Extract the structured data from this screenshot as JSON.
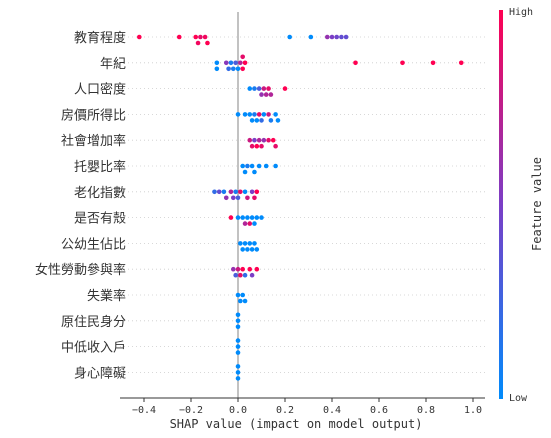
{
  "chart_data": {
    "type": "scatter",
    "subtype": "shap-beeswarm-summary",
    "xlabel": "SHAP value (impact on model output)",
    "xlim": [
      -0.5,
      1.0
    ],
    "xticks": [
      -0.4,
      -0.2,
      0.0,
      0.2,
      0.4,
      0.6,
      0.8,
      1.0
    ],
    "xtick_labels": [
      "−0.4",
      "−0.2",
      "0.0",
      "0.2",
      "0.4",
      "0.6",
      "0.8",
      "1.0"
    ],
    "grid": false,
    "colorbar": {
      "title": "Feature value",
      "high_label": "High",
      "low_label": "Low",
      "low_color": "#008bfb",
      "high_color": "#ff0052"
    },
    "features": [
      {
        "name": "教育程度",
        "points": [
          {
            "x": -0.42,
            "c": 1.0
          },
          {
            "x": -0.25,
            "c": 1.0
          },
          {
            "x": -0.18,
            "c": 1.0
          },
          {
            "x": -0.17,
            "c": 0.95
          },
          {
            "x": -0.16,
            "c": 0.9
          },
          {
            "x": -0.14,
            "c": 0.95
          },
          {
            "x": -0.13,
            "c": 1.0
          },
          {
            "x": 0.22,
            "c": 0.0
          },
          {
            "x": 0.31,
            "c": 0.0
          },
          {
            "x": 0.38,
            "c": 0.6
          },
          {
            "x": 0.4,
            "c": 0.5
          },
          {
            "x": 0.42,
            "c": 0.45
          },
          {
            "x": 0.44,
            "c": 0.4
          },
          {
            "x": 0.46,
            "c": 0.4
          }
        ]
      },
      {
        "name": "年紀",
        "points": [
          {
            "x": -0.09,
            "c": 0.0
          },
          {
            "x": -0.09,
            "c": 0.0
          },
          {
            "x": -0.05,
            "c": 0.55
          },
          {
            "x": -0.04,
            "c": 0.2
          },
          {
            "x": -0.03,
            "c": 0.1
          },
          {
            "x": -0.02,
            "c": 0.1
          },
          {
            "x": -0.01,
            "c": 0.3
          },
          {
            "x": 0.0,
            "c": 0.0
          },
          {
            "x": 0.01,
            "c": 0.7
          },
          {
            "x": 0.02,
            "c": 1.0
          },
          {
            "x": 0.02,
            "c": 0.9
          },
          {
            "x": 0.03,
            "c": 1.0
          },
          {
            "x": 0.5,
            "c": 1.0
          },
          {
            "x": 0.7,
            "c": 1.0
          },
          {
            "x": 0.83,
            "c": 1.0
          },
          {
            "x": 0.95,
            "c": 1.0
          }
        ]
      },
      {
        "name": "人口密度",
        "points": [
          {
            "x": 0.05,
            "c": 0.0
          },
          {
            "x": 0.07,
            "c": 0.1
          },
          {
            "x": 0.09,
            "c": 0.3
          },
          {
            "x": 0.1,
            "c": 0.6
          },
          {
            "x": 0.11,
            "c": 0.8
          },
          {
            "x": 0.12,
            "c": 0.7
          },
          {
            "x": 0.13,
            "c": 0.9
          },
          {
            "x": 0.14,
            "c": 0.7
          },
          {
            "x": 0.2,
            "c": 1.0
          }
        ]
      },
      {
        "name": "房價所得比",
        "points": [
          {
            "x": 0.0,
            "c": 0.0
          },
          {
            "x": 0.03,
            "c": 0.0
          },
          {
            "x": 0.05,
            "c": 0.0
          },
          {
            "x": 0.06,
            "c": 0.0
          },
          {
            "x": 0.07,
            "c": 0.1
          },
          {
            "x": 0.08,
            "c": 0.0
          },
          {
            "x": 0.09,
            "c": 0.9
          },
          {
            "x": 0.1,
            "c": 0.2
          },
          {
            "x": 0.11,
            "c": 0.0
          },
          {
            "x": 0.13,
            "c": 0.8
          },
          {
            "x": 0.14,
            "c": 0.1
          },
          {
            "x": 0.16,
            "c": 0.0
          },
          {
            "x": 0.17,
            "c": 0.0
          }
        ]
      },
      {
        "name": "社會增加率",
        "points": [
          {
            "x": 0.05,
            "c": 0.8
          },
          {
            "x": 0.06,
            "c": 0.9
          },
          {
            "x": 0.07,
            "c": 0.5
          },
          {
            "x": 0.08,
            "c": 1.0
          },
          {
            "x": 0.09,
            "c": 0.7
          },
          {
            "x": 0.1,
            "c": 0.9
          },
          {
            "x": 0.11,
            "c": 0.6
          },
          {
            "x": 0.13,
            "c": 0.9
          },
          {
            "x": 0.15,
            "c": 1.0
          },
          {
            "x": 0.16,
            "c": 0.9
          }
        ]
      },
      {
        "name": "托嬰比率",
        "points": [
          {
            "x": 0.02,
            "c": 0.0
          },
          {
            "x": 0.03,
            "c": 0.0
          },
          {
            "x": 0.04,
            "c": 0.1
          },
          {
            "x": 0.06,
            "c": 0.0
          },
          {
            "x": 0.07,
            "c": 0.0
          },
          {
            "x": 0.09,
            "c": 0.0
          },
          {
            "x": 0.12,
            "c": 0.0
          },
          {
            "x": 0.16,
            "c": 0.0
          }
        ]
      },
      {
        "name": "老化指數",
        "points": [
          {
            "x": -0.1,
            "c": 0.2
          },
          {
            "x": -0.08,
            "c": 0.4
          },
          {
            "x": -0.06,
            "c": 0.1
          },
          {
            "x": -0.05,
            "c": 0.6
          },
          {
            "x": -0.03,
            "c": 0.7
          },
          {
            "x": -0.02,
            "c": 0.5
          },
          {
            "x": -0.01,
            "c": 0.1
          },
          {
            "x": 0.0,
            "c": 0.3
          },
          {
            "x": 0.01,
            "c": 0.9
          },
          {
            "x": 0.03,
            "c": 0.0
          },
          {
            "x": 0.04,
            "c": 0.8
          },
          {
            "x": 0.06,
            "c": 0.5
          },
          {
            "x": 0.07,
            "c": 0.9
          },
          {
            "x": 0.08,
            "c": 1.0
          }
        ]
      },
      {
        "name": "是否有殼",
        "points": [
          {
            "x": -0.03,
            "c": 1.0
          },
          {
            "x": 0.0,
            "c": 0.0
          },
          {
            "x": 0.02,
            "c": 0.0
          },
          {
            "x": 0.03,
            "c": 0.7
          },
          {
            "x": 0.04,
            "c": 0.0
          },
          {
            "x": 0.05,
            "c": 0.9
          },
          {
            "x": 0.06,
            "c": 0.0
          },
          {
            "x": 0.07,
            "c": 0.0
          },
          {
            "x": 0.08,
            "c": 0.0
          },
          {
            "x": 0.1,
            "c": 0.0
          }
        ]
      },
      {
        "name": "公幼生佔比",
        "points": [
          {
            "x": 0.01,
            "c": 0.0
          },
          {
            "x": 0.02,
            "c": 0.0
          },
          {
            "x": 0.03,
            "c": 0.0
          },
          {
            "x": 0.04,
            "c": 0.0
          },
          {
            "x": 0.05,
            "c": 0.0
          },
          {
            "x": 0.06,
            "c": 0.0
          },
          {
            "x": 0.07,
            "c": 0.0
          },
          {
            "x": 0.08,
            "c": 0.0
          }
        ]
      },
      {
        "name": "女性勞動參與率",
        "points": [
          {
            "x": -0.02,
            "c": 0.6
          },
          {
            "x": -0.01,
            "c": 0.3
          },
          {
            "x": 0.0,
            "c": 0.8
          },
          {
            "x": 0.01,
            "c": 0.9
          },
          {
            "x": 0.02,
            "c": 1.0
          },
          {
            "x": 0.03,
            "c": 0.2
          },
          {
            "x": 0.05,
            "c": 1.0
          },
          {
            "x": 0.06,
            "c": 0.5
          },
          {
            "x": 0.08,
            "c": 1.0
          }
        ]
      },
      {
        "name": "失業率",
        "points": [
          {
            "x": 0.0,
            "c": 0.0
          },
          {
            "x": 0.01,
            "c": 0.0
          },
          {
            "x": 0.02,
            "c": 0.0
          },
          {
            "x": 0.03,
            "c": 0.0
          }
        ]
      },
      {
        "name": "原住民身分",
        "points": [
          {
            "x": 0.0,
            "c": 0.0
          },
          {
            "x": 0.0,
            "c": 0.0
          },
          {
            "x": 0.0,
            "c": 0.0
          }
        ]
      },
      {
        "name": "中低收入戶",
        "points": [
          {
            "x": 0.0,
            "c": 0.0
          },
          {
            "x": 0.0,
            "c": 0.0
          },
          {
            "x": 0.0,
            "c": 0.0
          }
        ]
      },
      {
        "name": "身心障礙",
        "points": [
          {
            "x": 0.0,
            "c": 0.0
          },
          {
            "x": 0.0,
            "c": 0.0
          },
          {
            "x": 0.0,
            "c": 0.0
          }
        ]
      }
    ]
  }
}
